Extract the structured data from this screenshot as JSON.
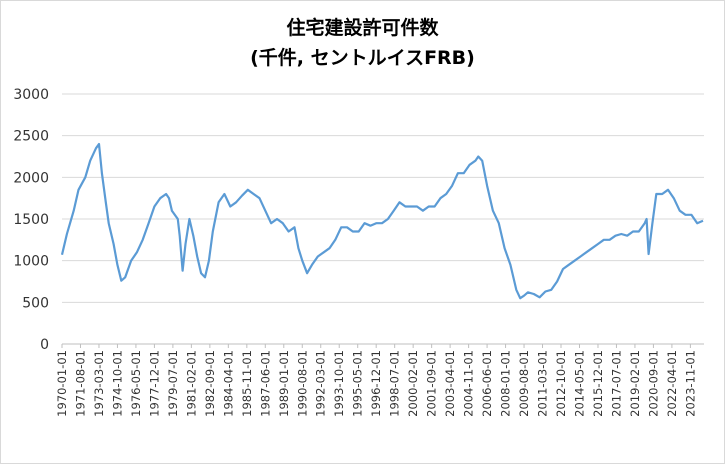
{
  "chart_data": {
    "type": "line",
    "title": "住宅建設許可件数",
    "subtitle": "(千件, セントルイスFRB)",
    "xlabel": "",
    "ylabel": "",
    "ylim": [
      0,
      3000
    ],
    "yticks": [
      0,
      500,
      1000,
      1500,
      2000,
      2500,
      3000
    ],
    "grid": true,
    "line_color": "#5b9bd5",
    "xtick_labels": [
      "1970-01-01",
      "1971-08-01",
      "1973-03-01",
      "1974-10-01",
      "1976-05-01",
      "1977-12-01",
      "1979-07-01",
      "1981-02-01",
      "1982-09-01",
      "1984-04-01",
      "1985-11-01",
      "1987-06-01",
      "1989-01-01",
      "1990-08-01",
      "1992-03-01",
      "1993-10-01",
      "1995-05-01",
      "1996-12-01",
      "1998-07-01",
      "2000-02-01",
      "2001-09-01",
      "2003-04-01",
      "2004-11-01",
      "2006-06-01",
      "2008-01-01",
      "2009-08-01",
      "2011-03-01",
      "2012-10-01",
      "2014-05-01",
      "2015-12-01",
      "2017-07-01",
      "2019-02-01",
      "2020-09-01",
      "2022-04-01",
      "2023-11-01"
    ],
    "series": [
      {
        "x": [
          "1970-01",
          "1970-06",
          "1971-01",
          "1971-06",
          "1972-01",
          "1972-06",
          "1972-12",
          "1973-03",
          "1973-06",
          "1973-10",
          "1974-01",
          "1974-06",
          "1974-10",
          "1975-02",
          "1975-06",
          "1975-12",
          "1976-06",
          "1976-12",
          "1977-06",
          "1977-12",
          "1978-06",
          "1978-12",
          "1979-03",
          "1979-06",
          "1979-12",
          "1980-02",
          "1980-05",
          "1980-08",
          "1980-12",
          "1981-04",
          "1981-08",
          "1981-12",
          "1982-04",
          "1982-08",
          "1982-12",
          "1983-06",
          "1983-12",
          "1984-06",
          "1984-12",
          "1985-06",
          "1985-12",
          "1986-06",
          "1986-12",
          "1987-06",
          "1987-12",
          "1988-06",
          "1988-12",
          "1989-06",
          "1989-12",
          "1990-04",
          "1990-08",
          "1991-01",
          "1991-06",
          "1991-12",
          "1992-06",
          "1992-12",
          "1993-06",
          "1993-12",
          "1994-06",
          "1994-12",
          "1995-06",
          "1995-12",
          "1996-06",
          "1996-12",
          "1997-06",
          "1997-12",
          "1998-06",
          "1998-12",
          "1999-06",
          "1999-12",
          "2000-06",
          "2000-12",
          "2001-06",
          "2001-12",
          "2002-06",
          "2002-12",
          "2003-06",
          "2003-12",
          "2004-06",
          "2004-12",
          "2005-06",
          "2005-09",
          "2006-01",
          "2006-06",
          "2006-12",
          "2007-06",
          "2007-12",
          "2008-06",
          "2008-12",
          "2009-04",
          "2009-08",
          "2009-12",
          "2010-06",
          "2010-12",
          "2011-06",
          "2011-12",
          "2012-06",
          "2012-12",
          "2013-06",
          "2013-12",
          "2014-06",
          "2014-12",
          "2015-06",
          "2015-12",
          "2016-06",
          "2016-12",
          "2017-06",
          "2017-12",
          "2018-06",
          "2018-12",
          "2019-06",
          "2019-12",
          "2020-02",
          "2020-04",
          "2020-08",
          "2020-12",
          "2021-06",
          "2021-12",
          "2022-06",
          "2022-12",
          "2023-06",
          "2023-12",
          "2024-06",
          "2024-12"
        ],
        "y": [
          1070,
          1320,
          1600,
          1850,
          2000,
          2200,
          2350,
          2400,
          2050,
          1700,
          1450,
          1200,
          950,
          760,
          800,
          1000,
          1100,
          1250,
          1450,
          1650,
          1750,
          1800,
          1750,
          1600,
          1500,
          1300,
          880,
          1200,
          1500,
          1300,
          1050,
          850,
          800,
          1000,
          1350,
          1700,
          1800,
          1650,
          1700,
          1780,
          1850,
          1800,
          1750,
          1600,
          1450,
          1500,
          1450,
          1350,
          1400,
          1150,
          1000,
          850,
          950,
          1050,
          1100,
          1150,
          1250,
          1400,
          1400,
          1350,
          1350,
          1450,
          1420,
          1450,
          1450,
          1500,
          1600,
          1700,
          1650,
          1650,
          1650,
          1600,
          1650,
          1650,
          1750,
          1800,
          1900,
          2050,
          2050,
          2150,
          2200,
          2250,
          2200,
          1900,
          1600,
          1450,
          1150,
          950,
          650,
          550,
          580,
          620,
          600,
          560,
          630,
          650,
          750,
          900,
          950,
          1000,
          1050,
          1100,
          1150,
          1200,
          1250,
          1250,
          1300,
          1320,
          1300,
          1350,
          1350,
          1450,
          1500,
          1080,
          1450,
          1800,
          1800,
          1850,
          1750,
          1600,
          1550,
          1550,
          1450,
          1480
        ]
      }
    ]
  }
}
